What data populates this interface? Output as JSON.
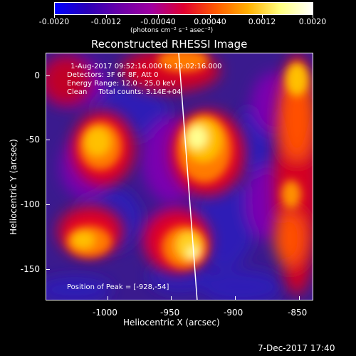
{
  "colorbar": {
    "ticks": [
      "-0.0020",
      "-0.0012",
      "-0.00040",
      "0.00040",
      "0.0012",
      "0.0020"
    ],
    "unit_label": "(photons cm⁻² s⁻¹ asec⁻²)",
    "stops": [
      "#0000ff",
      "#2a00b8",
      "#6a00a8",
      "#a000a0",
      "#e00030",
      "#ff5a00",
      "#ffb000",
      "#ffff80",
      "#ffffff"
    ]
  },
  "title": "Reconstructed RHESSI Image",
  "info": {
    "line1": " 1-Aug-2017 09:52:16.000 to 10:02:16.000",
    "line2": "Detectors: 3F 6F 8F, Att 0",
    "line3": "Energy Range: 12.0 - 25.0 keV",
    "line4": "Clean     Total counts: 3.14E+04",
    "peak": "Position of Peak = [-928,-54]"
  },
  "axes": {
    "x_label": "Heliocentric X (arcsec)",
    "y_label": "Heliocentric Y (arcsec)",
    "x_ticks": [
      "-1000",
      "-950",
      "-900",
      "-850"
    ],
    "y_ticks": [
      "0",
      "-50",
      "-100",
      "-150"
    ]
  },
  "footer": {
    "timestamp": "7-Dec-2017 17:40"
  }
}
